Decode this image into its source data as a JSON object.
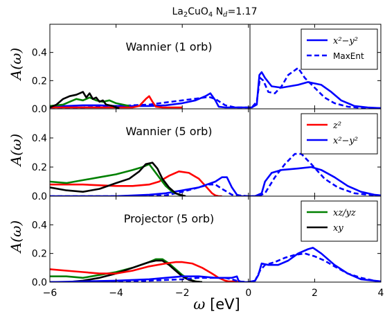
{
  "figure": {
    "title_main": "La",
    "title_sub1": "2",
    "title_mid": "CuO",
    "title_sub2": "4",
    "title_tail": "N",
    "title_sub3": "d",
    "title_end": "=1.17",
    "xlabel_greek": "ω",
    "xlabel_unit": "[eV]",
    "ylabel_A": "A",
    "ylabel_arg": "(ω)"
  },
  "colors": {
    "blue": "#0000ff",
    "red": "#ff0000",
    "green": "#008000",
    "black": "#000000"
  },
  "chart_data": [
    {
      "type": "line",
      "title": "Wannier (1 orb)",
      "ylabel": "A(ω)",
      "xlim": [
        -6,
        4
      ],
      "ylim": [
        0,
        0.6
      ],
      "yticks": [
        0.0,
        0.2,
        0.4
      ],
      "xticks": [
        -6,
        -4,
        -2,
        0,
        2,
        4
      ],
      "legend": "top-right",
      "series": [
        {
          "name": "x²−y²",
          "color": "blue",
          "style": "solid",
          "x": [
            -6,
            -5.5,
            -5,
            -4.5,
            -4,
            -3.5,
            -3,
            -2.5,
            -2,
            -1.6,
            -1.3,
            -1.15,
            -1.0,
            -0.9,
            -0.7,
            -0.4,
            -0.1,
            0.1,
            0.25,
            0.33,
            0.4,
            0.5,
            0.7,
            1,
            1.5,
            1.8,
            2.2,
            2.5,
            2.8,
            3.2,
            3.6,
            4
          ],
          "y": [
            0.02,
            0.02,
            0.025,
            0.025,
            0.02,
            0.02,
            0.02,
            0.025,
            0.04,
            0.06,
            0.09,
            0.11,
            0.06,
            0.015,
            0.01,
            0.01,
            0.01,
            0.01,
            0.03,
            0.24,
            0.26,
            0.22,
            0.16,
            0.15,
            0.17,
            0.19,
            0.17,
            0.12,
            0.06,
            0.02,
            0.01,
            0.005
          ]
        },
        {
          "name": "MaxEnt",
          "color": "blue",
          "style": "dashed",
          "x": [
            -6,
            -5,
            -4,
            -3.5,
            -3,
            -2.5,
            -2,
            -1.5,
            -1.2,
            -1.0,
            -0.7,
            -0.4,
            -0.1,
            0.1,
            0.25,
            0.35,
            0.45,
            0.6,
            0.8,
            1.0,
            1.2,
            1.5,
            1.7,
            2.0,
            2.3,
            2.6,
            3.0,
            3.5,
            4
          ],
          "y": [
            0.01,
            0.01,
            0.02,
            0.025,
            0.03,
            0.045,
            0.06,
            0.075,
            0.085,
            0.07,
            0.025,
            0.01,
            0.01,
            0.01,
            0.05,
            0.22,
            0.2,
            0.12,
            0.11,
            0.16,
            0.24,
            0.29,
            0.22,
            0.15,
            0.08,
            0.04,
            0.015,
            0.005,
            0.005
          ]
        },
        {
          "color": "red",
          "style": "solid",
          "x": [
            -6,
            -5,
            -4,
            -3.5,
            -3.3,
            -3.1,
            -3.0,
            -2.9,
            -2.8,
            -2.6,
            -2.4,
            -2.0
          ],
          "y": [
            0.01,
            0.01,
            0.01,
            0.01,
            0.02,
            0.07,
            0.09,
            0.05,
            0.015,
            0.01,
            0.01,
            0.01
          ]
        },
        {
          "color": "green",
          "style": "solid",
          "x": [
            -6,
            -5.6,
            -5.4,
            -5.2,
            -5.0,
            -4.8,
            -4.6,
            -4.4,
            -4.2,
            -4.0,
            -3.8,
            -3.6
          ],
          "y": [
            0.02,
            0.03,
            0.05,
            0.07,
            0.06,
            0.08,
            0.06,
            0.05,
            0.06,
            0.04,
            0.03,
            0.02
          ]
        },
        {
          "color": "black",
          "style": "solid",
          "x": [
            -6,
            -5.8,
            -5.6,
            -5.4,
            -5.2,
            -5.0,
            -4.9,
            -4.8,
            -4.7,
            -4.6,
            -4.5,
            -4.4,
            -4.3,
            -4.1,
            -4.0,
            -3.9
          ],
          "y": [
            0.01,
            0.03,
            0.07,
            0.09,
            0.1,
            0.12,
            0.08,
            0.11,
            0.07,
            0.08,
            0.05,
            0.06,
            0.03,
            0.02,
            0.01,
            0.005
          ]
        }
      ]
    },
    {
      "type": "line",
      "title": "Wannier (5 orb)",
      "ylabel": "A(ω)",
      "xlim": [
        -6,
        4
      ],
      "ylim": [
        0,
        0.6
      ],
      "yticks": [
        0.0,
        0.2,
        0.4
      ],
      "xticks": [
        -6,
        -4,
        -2,
        0,
        2,
        4
      ],
      "legend": "top-right",
      "series": [
        {
          "name": "z²",
          "color": "red",
          "style": "solid",
          "x": [
            -6,
            -5,
            -4.5,
            -4,
            -3.5,
            -3,
            -2.7,
            -2.4,
            -2.1,
            -1.8,
            -1.5,
            -1.3,
            -1.1,
            -1.0,
            -0.9,
            -0.8
          ],
          "y": [
            0.08,
            0.08,
            0.075,
            0.07,
            0.07,
            0.08,
            0.1,
            0.14,
            0.17,
            0.16,
            0.12,
            0.07,
            0.02,
            0.005,
            0.0,
            0.0
          ]
        },
        {
          "name": "x²−y²",
          "color": "blue",
          "style": "solid",
          "x": [
            -6,
            -4,
            -3,
            -2.5,
            -2,
            -1.5,
            -1.0,
            -0.8,
            -0.65,
            -0.5,
            -0.35,
            -0.2,
            -0.1,
            0,
            0.2,
            0.4,
            0.5,
            0.7,
            1,
            1.5,
            1.9,
            2.2,
            2.6,
            3,
            3.4,
            3.8,
            4
          ],
          "y": [
            0.0,
            0.0,
            0.01,
            0.02,
            0.04,
            0.06,
            0.1,
            0.13,
            0.13,
            0.06,
            0.01,
            0.0,
            0.0,
            0.0,
            0.0,
            0.02,
            0.1,
            0.16,
            0.18,
            0.19,
            0.2,
            0.18,
            0.13,
            0.07,
            0.03,
            0.01,
            0.005
          ]
        },
        {
          "color": "blue",
          "style": "dashed",
          "x": [
            -6,
            -3,
            -2.5,
            -2,
            -1.5,
            -1.2,
            -1.0,
            -0.8,
            -0.5,
            0,
            0.3,
            0.5,
            0.8,
            1.1,
            1.4,
            1.6,
            1.9,
            2.3,
            2.7,
            3.2,
            3.6,
            4
          ],
          "y": [
            0.0,
            0.0,
            0.005,
            0.03,
            0.06,
            0.08,
            0.08,
            0.05,
            0.01,
            0.0,
            0.0,
            0.02,
            0.13,
            0.22,
            0.29,
            0.29,
            0.22,
            0.12,
            0.06,
            0.02,
            0.01,
            0.005
          ]
        },
        {
          "color": "green",
          "style": "solid",
          "x": [
            -6,
            -5.5,
            -5,
            -4.5,
            -4,
            -3.5,
            -3.2,
            -3.0,
            -2.9,
            -2.7,
            -2.5,
            -2.3,
            -2.1,
            -1.9
          ],
          "y": [
            0.1,
            0.09,
            0.11,
            0.13,
            0.15,
            0.18,
            0.2,
            0.22,
            0.19,
            0.13,
            0.07,
            0.03,
            0.01,
            0.0
          ]
        },
        {
          "color": "black",
          "style": "solid",
          "x": [
            -6,
            -5.5,
            -5,
            -4.5,
            -4,
            -3.6,
            -3.3,
            -3.1,
            -2.9,
            -2.75,
            -2.6,
            -2.4,
            -2.2,
            -2.0,
            -1.9
          ],
          "y": [
            0.06,
            0.04,
            0.03,
            0.05,
            0.09,
            0.12,
            0.17,
            0.22,
            0.23,
            0.19,
            0.12,
            0.06,
            0.02,
            0.005,
            0.0
          ]
        }
      ]
    },
    {
      "type": "line",
      "title": "Projector (5 orb)",
      "ylabel": "A(ω)",
      "xlim": [
        -6,
        4
      ],
      "ylim": [
        0,
        0.6
      ],
      "yticks": [
        0.0,
        0.2,
        0.4
      ],
      "xticks": [
        -6,
        -4,
        -2,
        0,
        2,
        4
      ],
      "legend": "top-right",
      "series": [
        {
          "name": "xz/yz",
          "color": "green",
          "style": "solid",
          "x": [
            -6,
            -5.5,
            -5,
            -4.5,
            -4,
            -3.5,
            -3.0,
            -2.8,
            -2.6,
            -2.4,
            -2.2,
            -2.0,
            -1.8,
            -1.6,
            -1.4
          ],
          "y": [
            0.04,
            0.04,
            0.03,
            0.05,
            0.07,
            0.1,
            0.14,
            0.16,
            0.16,
            0.13,
            0.09,
            0.05,
            0.02,
            0.005,
            0.0
          ]
        },
        {
          "name": "xy",
          "color": "black",
          "style": "solid",
          "x": [
            -6,
            -5.5,
            -5,
            -4.5,
            -4,
            -3.5,
            -3.0,
            -2.8,
            -2.6,
            -2.4,
            -2.2,
            -2.0,
            -1.8,
            -1.6,
            -1.4
          ],
          "y": [
            0.0,
            0.0,
            0.01,
            0.03,
            0.06,
            0.1,
            0.14,
            0.15,
            0.15,
            0.12,
            0.08,
            0.04,
            0.015,
            0.005,
            0.0
          ]
        },
        {
          "color": "red",
          "style": "solid",
          "x": [
            -6,
            -5.5,
            -5,
            -4.5,
            -4,
            -3.5,
            -3,
            -2.5,
            -2.2,
            -2.0,
            -1.7,
            -1.4,
            -1.1,
            -0.9,
            -0.7,
            -0.6,
            -0.5,
            -0.4,
            -0.3
          ],
          "y": [
            0.09,
            0.08,
            0.07,
            0.06,
            0.06,
            0.08,
            0.11,
            0.13,
            0.14,
            0.14,
            0.13,
            0.1,
            0.06,
            0.03,
            0.01,
            0.005,
            0.005,
            0.005,
            0.0
          ]
        },
        {
          "color": "blue",
          "style": "solid",
          "x": [
            -6,
            -4,
            -3,
            -2.5,
            -2,
            -1.5,
            -1,
            -0.7,
            -0.5,
            -0.35,
            -0.3,
            -0.2,
            0,
            0.2,
            0.3,
            0.4,
            0.6,
            0.9,
            1.2,
            1.5,
            1.8,
            1.95,
            2.2,
            2.6,
            3,
            3.4,
            3.8,
            4
          ],
          "y": [
            0.0,
            0.01,
            0.02,
            0.03,
            0.04,
            0.04,
            0.03,
            0.03,
            0.03,
            0.04,
            0.01,
            0.0,
            0.0,
            0.01,
            0.05,
            0.13,
            0.12,
            0.12,
            0.15,
            0.2,
            0.23,
            0.24,
            0.2,
            0.12,
            0.06,
            0.02,
            0.01,
            0.005
          ]
        },
        {
          "color": "blue",
          "style": "dashed",
          "x": [
            -6,
            -4,
            -3,
            -2,
            -1.5,
            -1,
            -0.7,
            -0.5,
            -0.3,
            0,
            0.2,
            0.35,
            0.5,
            0.8,
            1.1,
            1.4,
            1.7,
            2.0,
            2.3,
            2.6,
            3.0,
            3.4,
            3.8,
            4
          ],
          "y": [
            0.0,
            0.0,
            0.01,
            0.02,
            0.03,
            0.03,
            0.03,
            0.02,
            0.005,
            0.0,
            0.01,
            0.08,
            0.12,
            0.14,
            0.17,
            0.19,
            0.2,
            0.18,
            0.15,
            0.11,
            0.06,
            0.03,
            0.01,
            0.005
          ]
        }
      ]
    }
  ]
}
